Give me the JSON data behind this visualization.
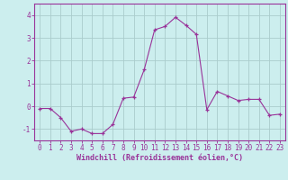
{
  "x": [
    0,
    1,
    2,
    3,
    4,
    5,
    6,
    7,
    8,
    9,
    10,
    11,
    12,
    13,
    14,
    15,
    16,
    17,
    18,
    19,
    20,
    21,
    22,
    23
  ],
  "y": [
    -0.1,
    -0.1,
    -0.5,
    -1.1,
    -1.0,
    -1.2,
    -1.2,
    -0.8,
    0.35,
    0.4,
    1.6,
    3.35,
    3.5,
    3.9,
    3.55,
    3.15,
    -0.15,
    0.65,
    0.45,
    0.25,
    0.3,
    0.3,
    -0.4,
    -0.35
  ],
  "line_color": "#993399",
  "marker": "+",
  "marker_color": "#993399",
  "bg_color": "#cceeee",
  "grid_color": "#aacccc",
  "xlabel": "Windchill (Refroidissement éolien,°C)",
  "xlabel_color": "#993399",
  "tick_color": "#993399",
  "spine_color": "#993399",
  "ylim": [
    -1.5,
    4.5
  ],
  "xlim": [
    -0.5,
    23.5
  ],
  "yticks": [
    -1,
    0,
    1,
    2,
    3,
    4
  ],
  "xticks": [
    0,
    1,
    2,
    3,
    4,
    5,
    6,
    7,
    8,
    9,
    10,
    11,
    12,
    13,
    14,
    15,
    16,
    17,
    18,
    19,
    20,
    21,
    22,
    23
  ],
  "figsize": [
    3.2,
    2.0
  ],
  "dpi": 100
}
